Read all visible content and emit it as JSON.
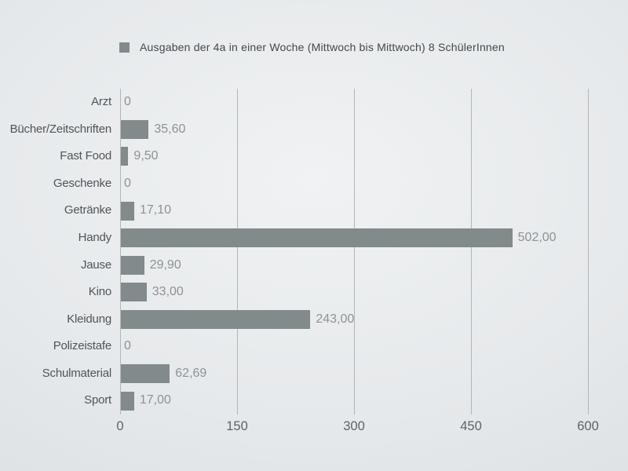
{
  "chart_data": {
    "type": "bar",
    "orientation": "horizontal",
    "legend": "Ausgaben der 4a in einer Woche (Mittwoch bis Mittwoch) 8 SchülerInnen",
    "legend_position": "top",
    "categories": [
      "Arzt",
      "Bücher/Zeitschriften",
      "Fast Food",
      "Geschenke",
      "Getränke",
      "Handy",
      "Jause",
      "Kino",
      "Kleidung",
      "Polizeistafe",
      "Schulmaterial",
      "Sport"
    ],
    "values": [
      0,
      35.6,
      9.5,
      0,
      17.1,
      502.0,
      29.9,
      33.0,
      243.0,
      0,
      62.69,
      17.0
    ],
    "value_labels": [
      "0",
      "35,60",
      "9,50",
      "0",
      "17,10",
      "502,00",
      "29,90",
      "33,00",
      "243,00",
      "0",
      "62,69",
      "17,00"
    ],
    "x_ticks": [
      0,
      150,
      300,
      450,
      600
    ],
    "x_tick_labels": [
      "0",
      "150",
      "300",
      "450",
      "600"
    ],
    "xlim": [
      0,
      600
    ],
    "grid": true
  },
  "colors": {
    "bar": "#838a8b",
    "gridline": "#b2b6b8",
    "category_label": "#4f5458",
    "value_label": "#8e9296",
    "tick_label": "#5e6266",
    "legend_text": "#44474b"
  }
}
